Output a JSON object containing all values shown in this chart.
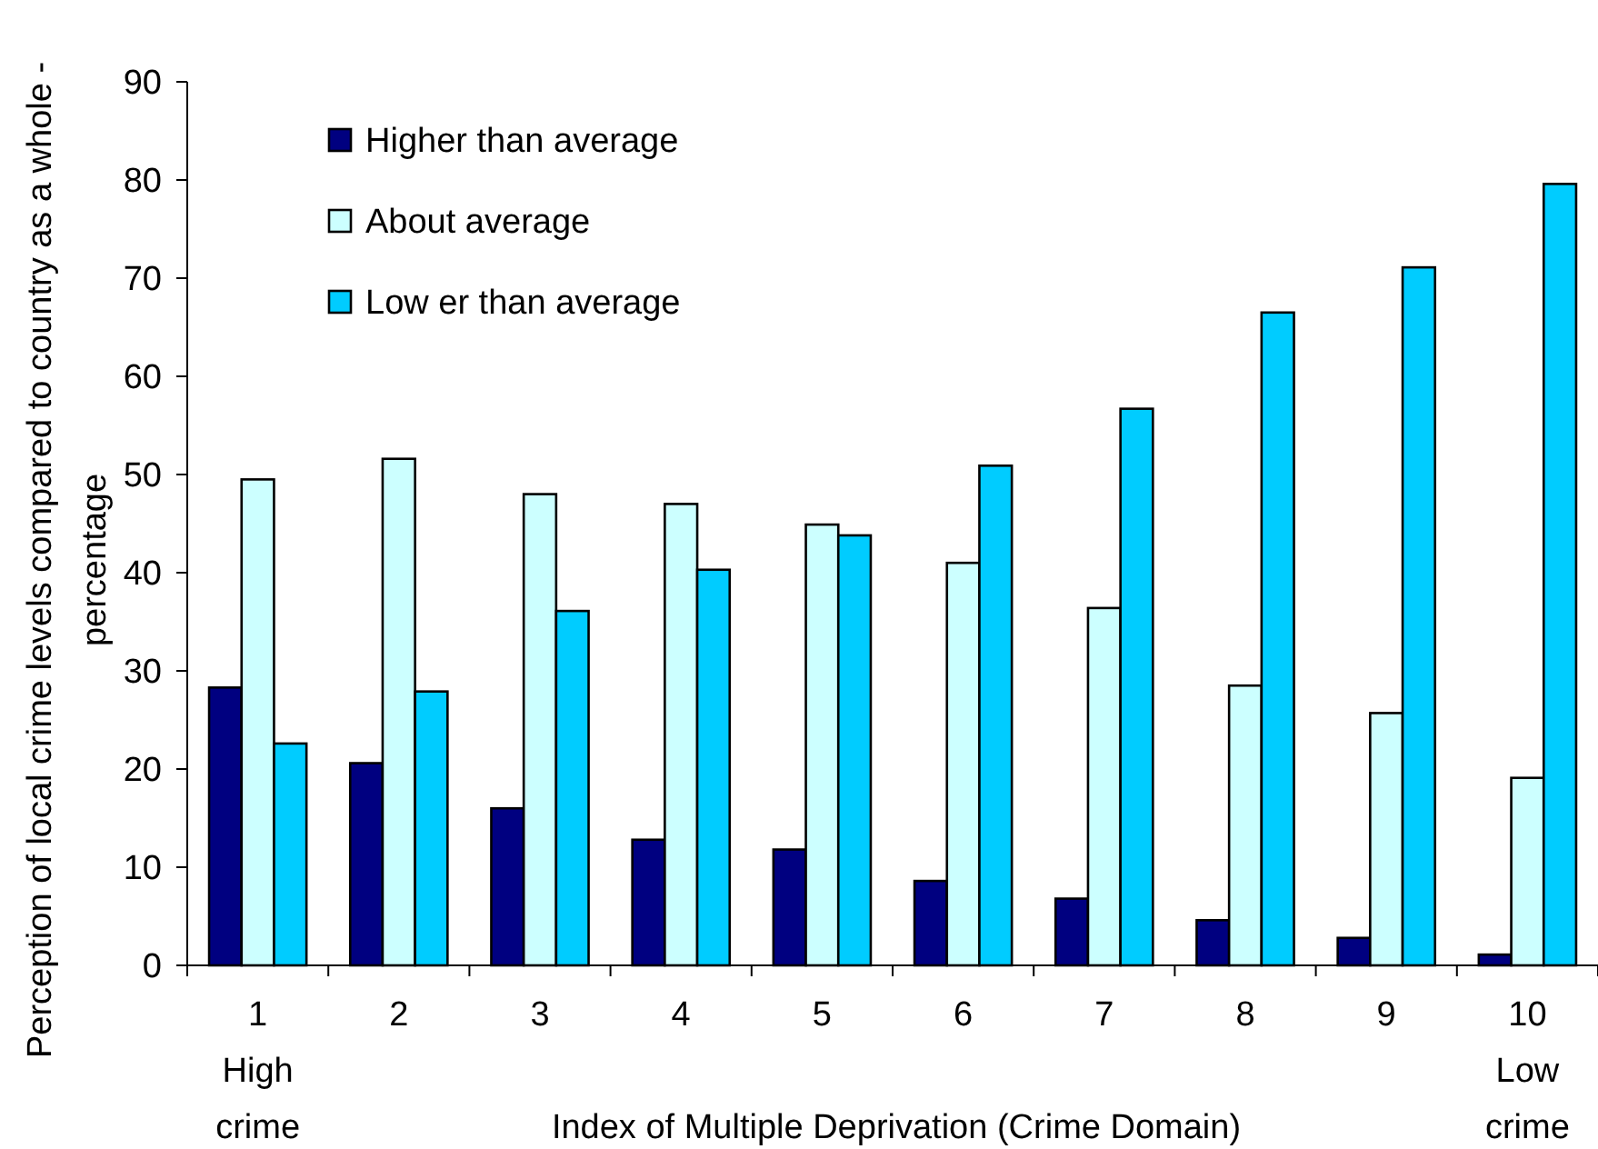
{
  "chart_data": {
    "type": "bar",
    "xlabel": "Index of Multiple Deprivation (Crime Domain)",
    "ylabel": "Perception of local crime levels compared to country as a whole -\npercentage",
    "categories": [
      "1\nHigh\ncrime",
      "2",
      "3",
      "4",
      "5",
      "6",
      "7",
      "8",
      "9",
      "10\nLow\ncrime"
    ],
    "series": [
      {
        "name": "Higher than average",
        "color": "#000080",
        "values": [
          28.3,
          20.6,
          16.0,
          12.8,
          11.8,
          8.6,
          6.8,
          4.6,
          2.8,
          1.1
        ]
      },
      {
        "name": "About average",
        "color": "#ccffff",
        "values": [
          49.5,
          51.6,
          48.0,
          47.0,
          44.9,
          41.0,
          36.4,
          28.5,
          25.7,
          19.1
        ]
      },
      {
        "name": "Low er than average",
        "color": "#00ccff",
        "values": [
          22.6,
          27.9,
          36.1,
          40.3,
          43.8,
          50.9,
          56.7,
          66.5,
          71.1,
          79.6
        ]
      }
    ],
    "ylim": [
      0,
      90
    ],
    "yticks": [
      0,
      10,
      20,
      30,
      40,
      50,
      60,
      70,
      80,
      90
    ],
    "grid": false,
    "legend": "top left"
  }
}
